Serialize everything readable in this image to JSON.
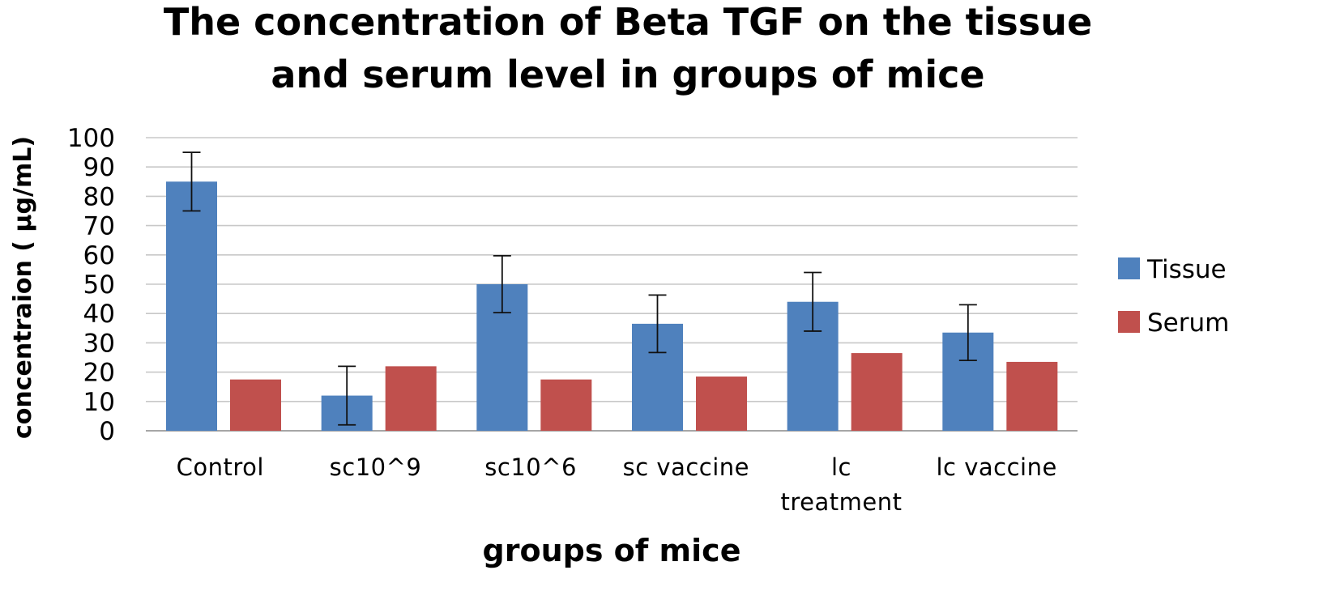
{
  "chart_data": {
    "type": "bar",
    "title": [
      "The concentration of Beta TGF on the tissue",
      "and serum level in groups of mice"
    ],
    "xlabel": "groups of mice",
    "ylabel": "concentraion  ( μg/mL)",
    "ylim": [
      0,
      100
    ],
    "yticks": [
      0,
      10,
      20,
      30,
      40,
      50,
      60,
      70,
      80,
      90,
      100
    ],
    "grid": true,
    "legend_position": "right",
    "categories": [
      [
        "Control"
      ],
      [
        "sc10^9"
      ],
      [
        "sc10^6"
      ],
      [
        "sc vaccine"
      ],
      [
        "lc",
        "treatment"
      ],
      [
        "lc vaccine"
      ]
    ],
    "series": [
      {
        "name": "Tissue",
        "color": "#4f81bd",
        "values": [
          85,
          12,
          50,
          36.5,
          44,
          33.5
        ],
        "error": [
          10,
          10,
          9.7,
          9.8,
          10,
          9.5
        ]
      },
      {
        "name": "Serum",
        "color": "#c0504d",
        "values": [
          17.5,
          22,
          17.5,
          18.5,
          26.5,
          23.5
        ],
        "error": null
      }
    ]
  }
}
